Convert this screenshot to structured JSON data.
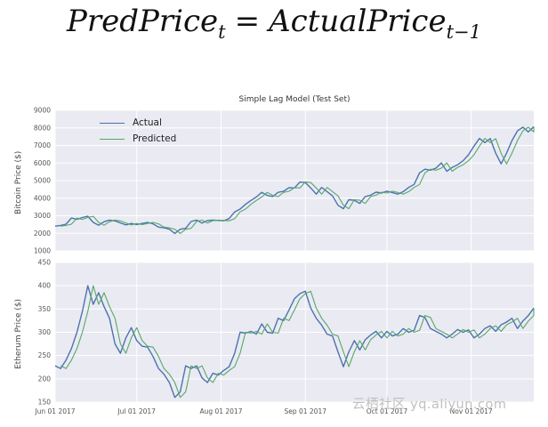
{
  "formula": {
    "lhs_base": "PredPrice",
    "lhs_sub": "t",
    "equals": "=",
    "rhs_base": "ActualPrice",
    "rhs_sub": "t−1"
  },
  "watermark": "云栖社区 yq.aliyun.com",
  "chart_data": [
    {
      "type": "line",
      "title": "Simple Lag Model (Test Set)",
      "ylabel": "Bitcoin Price ($)",
      "ylim": [
        1000,
        9000
      ],
      "yticks": [
        1000,
        2000,
        3000,
        4000,
        5000,
        6000,
        7000,
        8000,
        9000
      ],
      "x_days_span": 176,
      "sample_step_days": 2,
      "grid": true,
      "plot_bg": "#eaeaf2",
      "show_xticklabels": false,
      "show_legend": true,
      "legend_position": "upper left",
      "xticks": [
        {
          "label": "Jun 01 2017",
          "day": 0
        },
        {
          "label": "Jul 01 2017",
          "day": 30
        },
        {
          "label": "Aug 01 2017",
          "day": 61
        },
        {
          "label": "Sep 01 2017",
          "day": 92
        },
        {
          "label": "Oct 01 2017",
          "day": 122
        },
        {
          "label": "Nov 01 2017",
          "day": 153
        }
      ],
      "series": [
        {
          "name": "Actual",
          "color": "#4c72b0",
          "lag_steps": 0
        },
        {
          "name": "Predicted",
          "color": "#55a868",
          "lag_steps": 1
        }
      ],
      "values": [
        2410,
        2450,
        2520,
        2870,
        2790,
        2900,
        2970,
        2620,
        2460,
        2660,
        2750,
        2700,
        2590,
        2480,
        2560,
        2500,
        2560,
        2620,
        2540,
        2350,
        2310,
        2230,
        1990,
        2230,
        2280,
        2670,
        2750,
        2580,
        2720,
        2750,
        2730,
        2710,
        2840,
        3220,
        3380,
        3650,
        3870,
        4070,
        4330,
        4160,
        4090,
        4330,
        4390,
        4600,
        4580,
        4920,
        4890,
        4580,
        4230,
        4610,
        4370,
        4130,
        3600,
        3400,
        3910,
        3880,
        3700,
        4090,
        4170,
        4340,
        4290,
        4400,
        4320,
        4230,
        4370,
        4610,
        4780,
        5440,
        5650,
        5590,
        5710,
        6010,
        5530,
        5750,
        5900,
        6130,
        6470,
        6960,
        7400,
        7160,
        7390,
        6560,
        5950,
        6560,
        7280,
        7830,
        8040,
        7770,
        8070
      ]
    },
    {
      "type": "line",
      "title": "",
      "ylabel": "Etherum Price ($)",
      "ylim": [
        150,
        450
      ],
      "yticks": [
        150,
        200,
        250,
        300,
        350,
        400,
        450
      ],
      "x_days_span": 176,
      "sample_step_days": 2,
      "grid": true,
      "plot_bg": "#eaeaf2",
      "show_xticklabels": true,
      "show_legend": false,
      "xticks": [
        {
          "label": "Jun 01 2017",
          "day": 0
        },
        {
          "label": "Jul 01 2017",
          "day": 30
        },
        {
          "label": "Aug 01 2017",
          "day": 61
        },
        {
          "label": "Sep 01 2017",
          "day": 92
        },
        {
          "label": "Oct 01 2017",
          "day": 122
        },
        {
          "label": "Nov 01 2017",
          "day": 153
        }
      ],
      "series": [
        {
          "name": "Actual",
          "color": "#4c72b0",
          "lag_steps": 0
        },
        {
          "name": "Predicted",
          "color": "#55a868",
          "lag_steps": 1
        }
      ],
      "values": [
        228,
        222,
        240,
        265,
        300,
        345,
        400,
        360,
        385,
        355,
        330,
        275,
        255,
        288,
        310,
        282,
        270,
        268,
        248,
        222,
        210,
        192,
        160,
        172,
        228,
        222,
        228,
        202,
        192,
        212,
        208,
        218,
        226,
        255,
        300,
        298,
        302,
        296,
        318,
        300,
        298,
        330,
        325,
        348,
        372,
        383,
        388,
        352,
        330,
        315,
        296,
        292,
        258,
        226,
        258,
        282,
        262,
        284,
        294,
        302,
        288,
        302,
        292,
        296,
        308,
        300,
        304,
        336,
        332,
        308,
        302,
        296,
        288,
        296,
        306,
        300,
        305,
        288,
        296,
        308,
        314,
        302,
        316,
        322,
        330,
        308,
        324,
        336,
        352
      ]
    }
  ]
}
